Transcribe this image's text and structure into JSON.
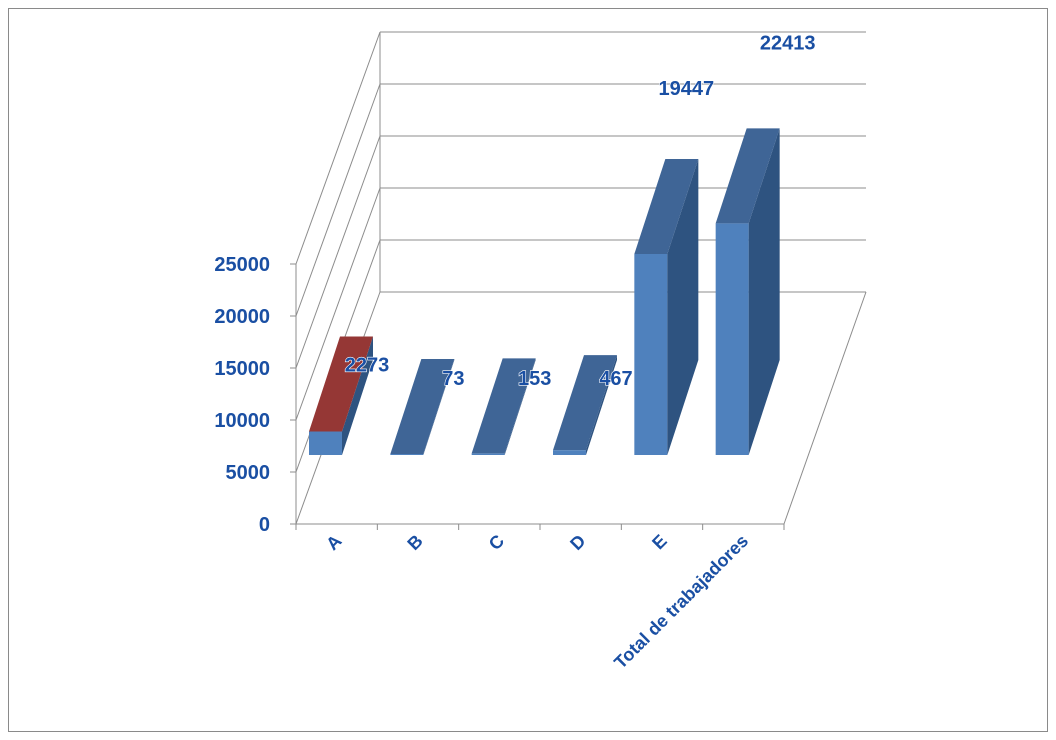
{
  "chart_data": {
    "type": "bar",
    "categories": [
      "A",
      "B",
      "C",
      "D",
      "E",
      "Total de trabajadores"
    ],
    "series": [
      {
        "values": [
          2273,
          73,
          153,
          467,
          19447,
          22413
        ]
      }
    ],
    "data_labels": [
      "2273",
      "73",
      "153",
      "467",
      "19447",
      "22413"
    ],
    "y_ticks": [
      "0",
      "5000",
      "10000",
      "15000",
      "20000",
      "25000"
    ],
    "ylim": [
      0,
      25000
    ],
    "grid": true,
    "legend": "none",
    "colors": {
      "bar_front": "#4f81bd",
      "bar_side": "#2e5380",
      "bar_top": "#3f6596",
      "highlight_top": "#953735",
      "label_fill": "#1a4fa3",
      "grid": "#8c8c8c"
    }
  }
}
